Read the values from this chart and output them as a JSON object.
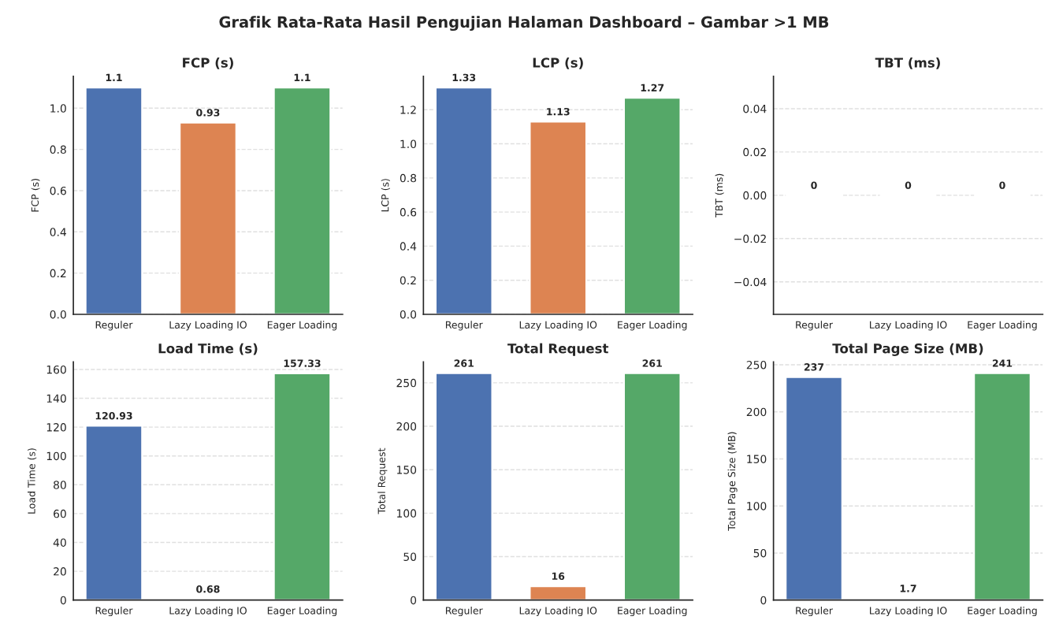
{
  "chart_data": [
    {
      "type": "bar",
      "annotations": [
        "Grafik Rata-Rata Hasil Pengujian Halaman Dashboard – Gambar >1 MB"
      ],
      "title": "FCP (s)",
      "ylabel": "FCP (s)",
      "categories": [
        "Reguler",
        "Lazy Loading IO",
        "Eager Loading"
      ],
      "values": [
        1.1,
        0.93,
        1.1
      ],
      "colors": [
        "#4c72b0",
        "#dd8452",
        "#55a868"
      ],
      "ylim": [
        0,
        1.155
      ],
      "yticks": [
        {
          "value": 0,
          "label": "0.0"
        },
        0.2,
        0.4,
        0.6,
        0.8,
        {
          "value": 1,
          "label": "1.0"
        }
      ],
      "grid": "y",
      "data_labels": true
    },
    {
      "type": "bar",
      "title": "LCP (s)",
      "ylabel": "LCP (s)",
      "categories": [
        "Reguler",
        "Lazy Loading IO",
        "Eager Loading"
      ],
      "values": [
        1.33,
        1.13,
        1.27
      ],
      "colors": [
        "#4c72b0",
        "#dd8452",
        "#55a868"
      ],
      "ylim": [
        0,
        1.3965
      ],
      "yticks": [
        {
          "value": 0,
          "label": "0.0"
        },
        0.2,
        0.4,
        0.6,
        0.8,
        {
          "value": 1,
          "label": "1.0"
        },
        1.2
      ],
      "grid": "y",
      "data_labels": true
    },
    {
      "type": "bar",
      "title": "TBT (ms)",
      "ylabel": "TBT (ms)",
      "categories": [
        "Reguler",
        "Lazy Loading IO",
        "Eager Loading"
      ],
      "values": [
        0,
        0,
        0
      ],
      "ylim": [
        -0.055,
        0.055
      ],
      "yticks": [
        {
          "value": -0.04,
          "label": "−0.04"
        },
        {
          "value": -0.02,
          "label": "−0.02"
        },
        {
          "value": 0,
          "label": "0.00"
        },
        0.02,
        0.04
      ],
      "grid": "y",
      "data_labels": true
    },
    {
      "type": "bar",
      "title": "Load Time (s)",
      "ylabel": "Load Time (s)",
      "categories": [
        "Reguler",
        "Lazy Loading IO",
        "Eager Loading"
      ],
      "values": [
        120.93,
        0.68,
        157.33
      ],
      "colors": [
        "#4c72b0",
        "#dd8452",
        "#55a868"
      ],
      "ylim": [
        0,
        165.2
      ],
      "yticks": [
        0,
        20,
        40,
        60,
        80,
        100,
        120,
        140,
        160
      ],
      "grid": "y",
      "data_labels": true
    },
    {
      "type": "bar",
      "title": "Total Request",
      "ylabel": "Total Request",
      "categories": [
        "Reguler",
        "Lazy Loading IO",
        "Eager Loading"
      ],
      "values": [
        261,
        16,
        261
      ],
      "colors": [
        "#4c72b0",
        "#dd8452",
        "#55a868"
      ],
      "ylim": [
        0,
        274
      ],
      "yticks": [
        0,
        50,
        100,
        150,
        200,
        250
      ],
      "grid": "y",
      "data_labels": true
    },
    {
      "type": "bar",
      "title": "Total Page Size (MB)",
      "ylabel": "Total Page Size (MB)",
      "categories": [
        "Reguler",
        "Lazy Loading IO",
        "Eager Loading"
      ],
      "values": [
        237,
        1.7,
        241
      ],
      "colors": [
        "#4c72b0",
        "#dd8452",
        "#55a868"
      ],
      "ylim": [
        0,
        253
      ],
      "yticks": [
        0,
        50,
        100,
        150,
        200,
        250
      ],
      "grid": "y",
      "data_labels": true
    }
  ]
}
